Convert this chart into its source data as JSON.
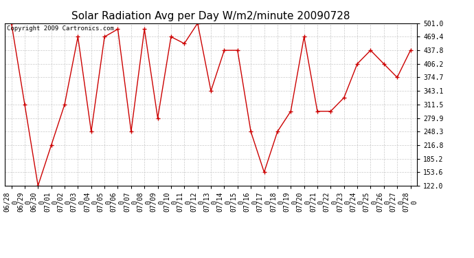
{
  "title": "Solar Radiation Avg per Day W/m2/minute 20090728",
  "copyright": "Copyright 2009 Cartronics.com",
  "dates": [
    "06/28\n0",
    "06/29\n0",
    "06/30\n0",
    "07/01\n0",
    "07/02\n0",
    "07/03\n0",
    "07/04\n0",
    "07/05\n0",
    "07/06\n0",
    "07/07\n0",
    "07/08\n0",
    "07/09\n0",
    "07/10\n0",
    "07/11\n0",
    "07/12\n0",
    "07/13\n0",
    "07/14\n0",
    "07/15\n0",
    "07/16\n0",
    "07/17\n0",
    "07/18\n0",
    "07/19\n0",
    "07/20\n0",
    "07/21\n0",
    "07/22\n0",
    "07/23\n0",
    "07/24\n0",
    "07/25\n0",
    "07/26\n0",
    "07/27\n0",
    "07/28\n0"
  ],
  "values": [
    501.0,
    311.5,
    122.0,
    216.8,
    311.5,
    469.4,
    248.3,
    469.4,
    487.2,
    248.3,
    487.2,
    279.9,
    469.4,
    453.6,
    501.0,
    343.1,
    437.8,
    437.8,
    248.3,
    153.6,
    248.3,
    295.7,
    469.4,
    295.7,
    295.7,
    327.3,
    406.2,
    437.8,
    406.2,
    374.7,
    437.8
  ],
  "yticks": [
    122.0,
    153.6,
    185.2,
    216.8,
    248.3,
    279.9,
    311.5,
    343.1,
    374.7,
    406.2,
    437.8,
    469.4,
    501.0
  ],
  "ytick_labels": [
    "122.0",
    "153.6",
    "185.2",
    "216.8",
    "248.3",
    "279.9",
    "311.5",
    "343.1",
    "374.7",
    "406.2",
    "437.8",
    "469.4",
    "501.0"
  ],
  "line_color": "#cc0000",
  "marker": "+",
  "marker_size": 4,
  "marker_color": "#cc0000",
  "bg_color": "#ffffff",
  "grid_color": "#bbbbbb",
  "title_fontsize": 11,
  "copyright_fontsize": 6.5,
  "tick_fontsize": 7,
  "ytick_fontsize": 7,
  "ylim": [
    122.0,
    501.0
  ]
}
